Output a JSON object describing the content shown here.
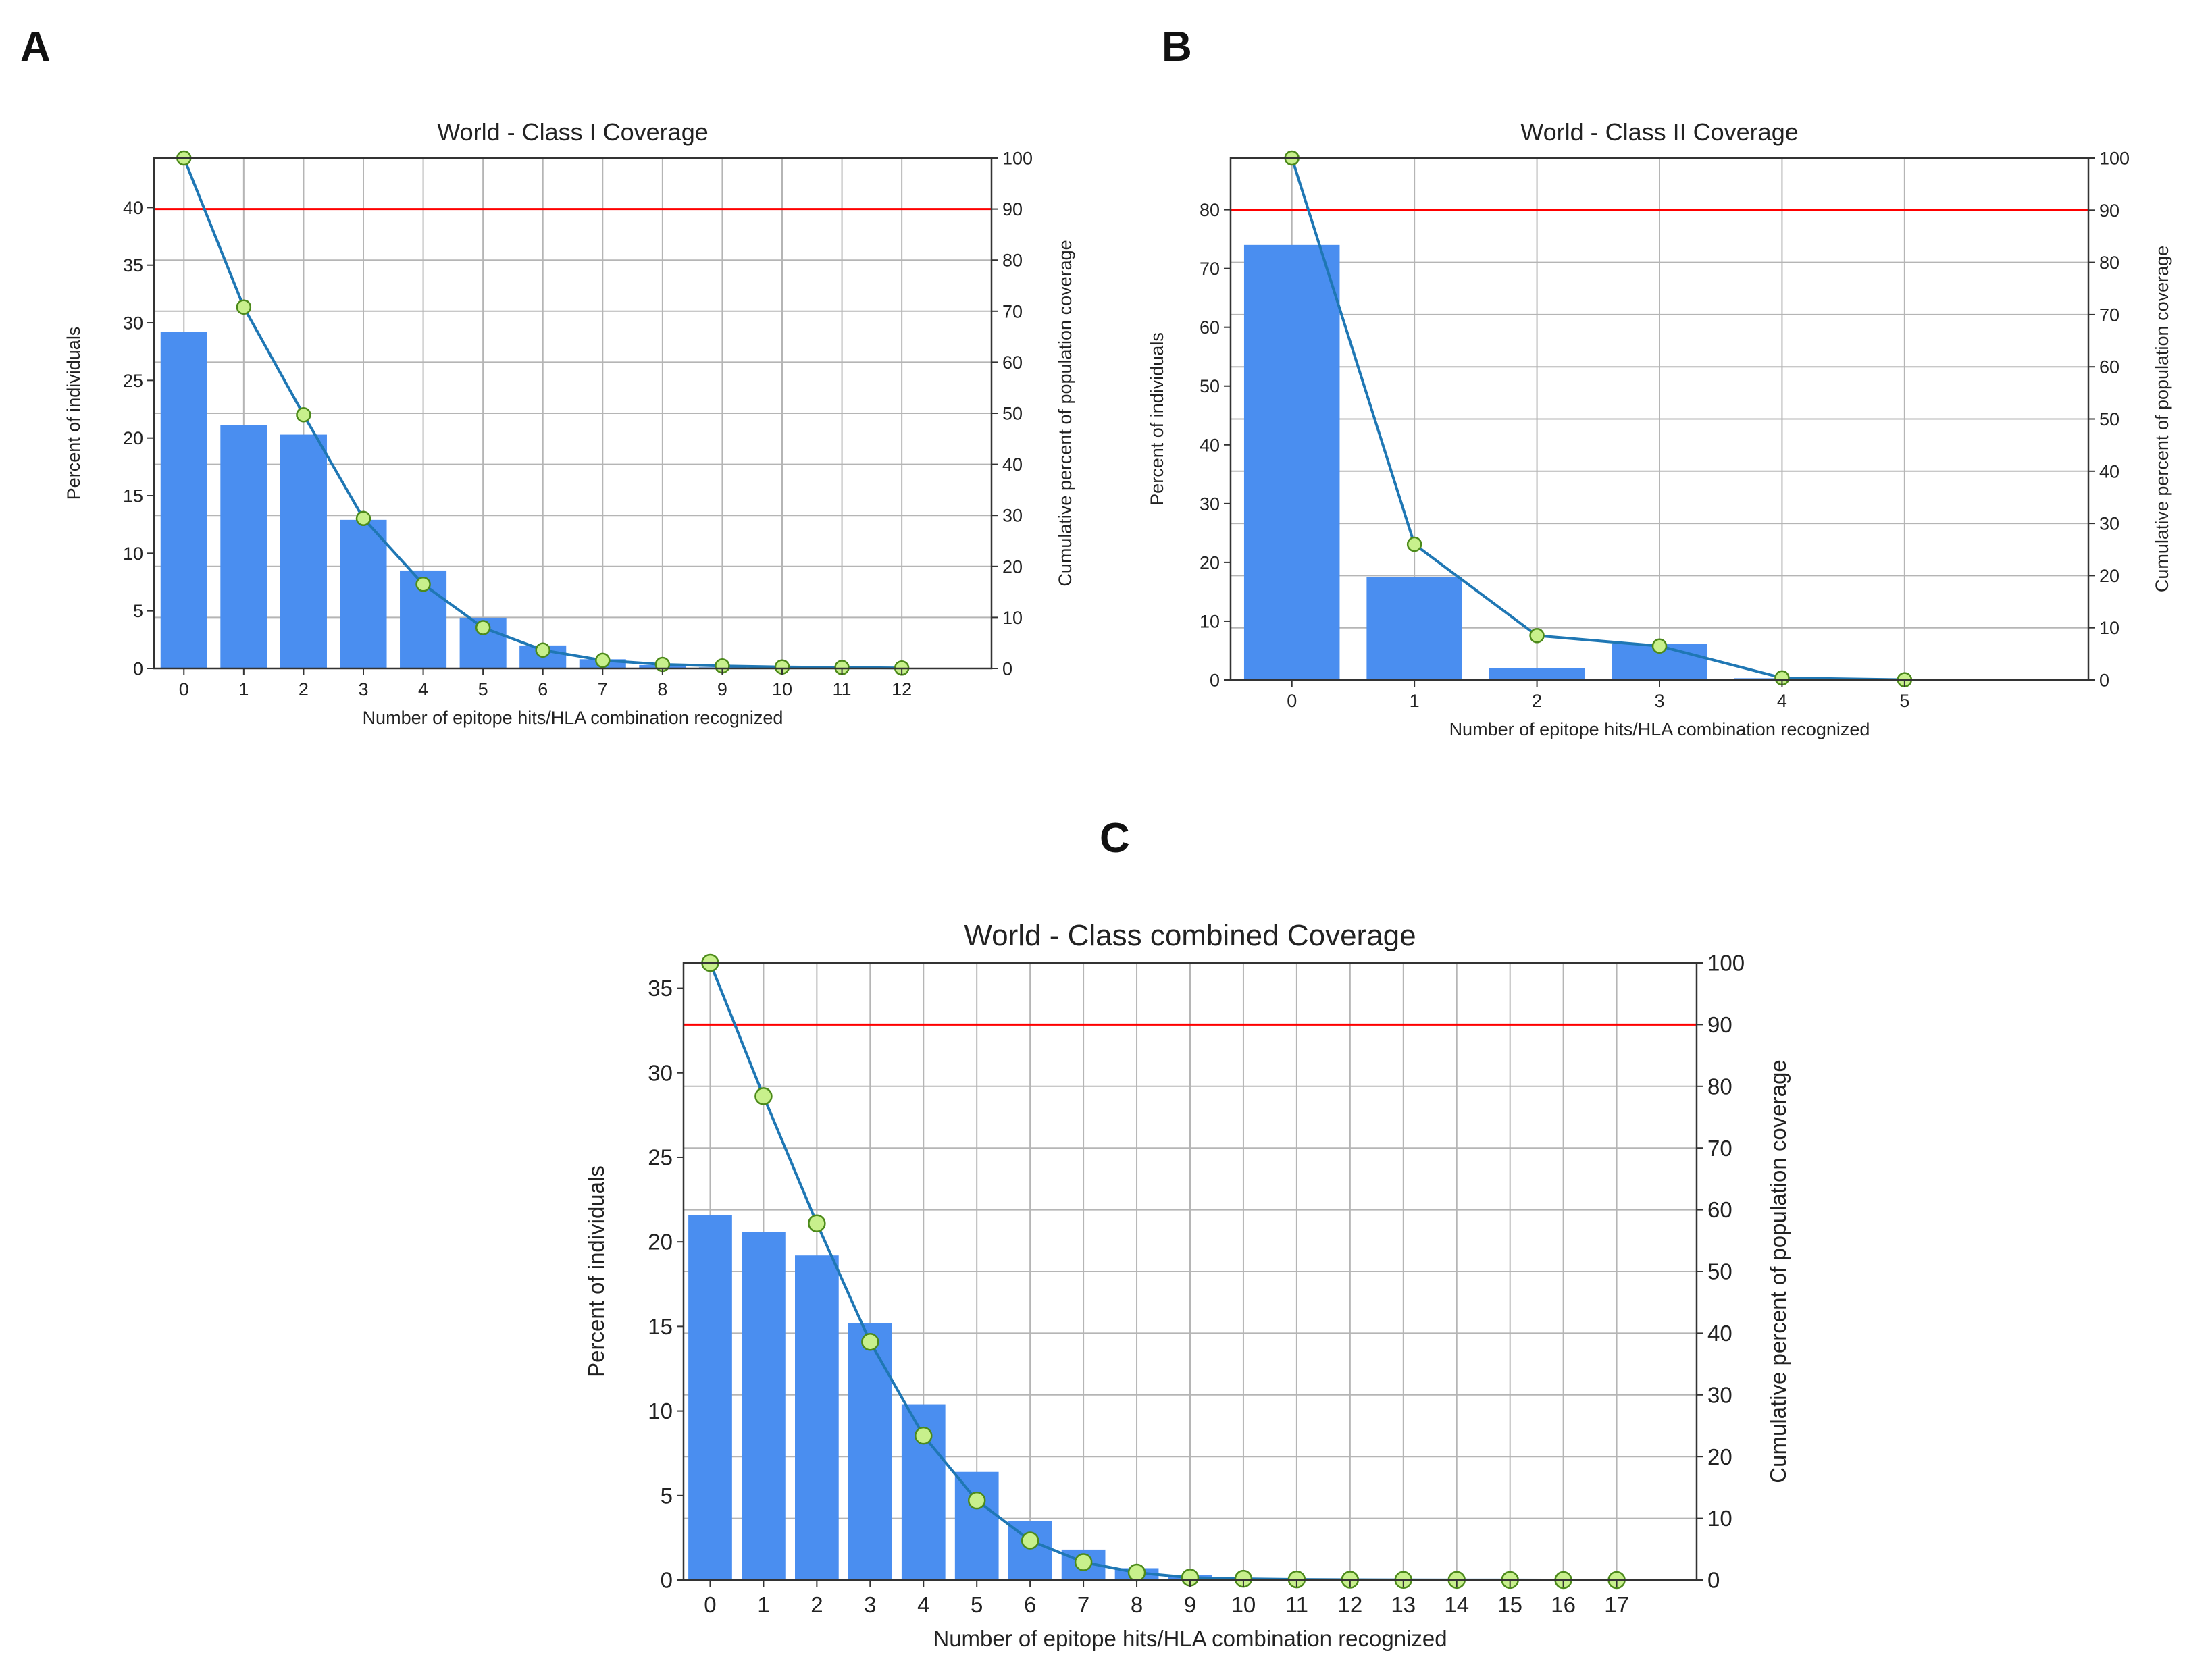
{
  "panels": [
    "A",
    "B",
    "C"
  ],
  "chart_data": [
    {
      "type": "bar",
      "panel_label": "A",
      "title": "World - Class I Coverage",
      "xlabel": "Number of epitope hits/HLA combination recognized",
      "ylabel": "Percent of individuals",
      "y2label": "Cumulative percent of population coverage",
      "categories": [
        "0",
        "1",
        "2",
        "3",
        "4",
        "5",
        "6",
        "7",
        "8",
        "9",
        "10",
        "11",
        "12"
      ],
      "series": [
        {
          "name": "Percent of individuals",
          "type": "bar",
          "color": "#4a8ef0",
          "values": [
            29.2,
            21.1,
            20.3,
            12.9,
            8.5,
            4.4,
            2.0,
            0.8,
            0.3,
            0.1,
            0.05,
            0.02,
            0.01
          ]
        },
        {
          "name": "Cumulative percent of population coverage",
          "type": "line",
          "axis": "right",
          "color": "#1f77b4",
          "marker_color": "#c8f08c",
          "values": [
            100,
            70.8,
            49.7,
            29.4,
            16.5,
            8.0,
            3.6,
            1.6,
            0.8,
            0.5,
            0.3,
            0.2,
            0.1
          ]
        }
      ],
      "ylim": [
        0,
        44.3
      ],
      "y2lim": [
        0,
        100
      ],
      "yticks": [
        0,
        5,
        10,
        15,
        20,
        25,
        30,
        35,
        40
      ],
      "y2ticks": [
        0,
        10,
        20,
        30,
        40,
        50,
        60,
        70,
        80,
        90,
        100
      ],
      "threshold_line": {
        "axis": "right",
        "value": 90,
        "color": "#ff0000"
      },
      "grid": true
    },
    {
      "type": "bar",
      "panel_label": "B",
      "title": "World - Class II Coverage",
      "xlabel": "Number of epitope hits/HLA combination recognized",
      "ylabel": "Percent of individuals",
      "y2label": "Cumulative percent of population coverage",
      "categories": [
        "0",
        "1",
        "2",
        "3",
        "4",
        "5"
      ],
      "series": [
        {
          "name": "Percent of individuals",
          "type": "bar",
          "color": "#4a8ef0",
          "values": [
            74.0,
            17.5,
            2.0,
            6.2,
            0.3,
            0.05
          ]
        },
        {
          "name": "Cumulative percent of population coverage",
          "type": "line",
          "axis": "right",
          "color": "#1f77b4",
          "marker_color": "#c8f08c",
          "values": [
            100,
            26.0,
            8.5,
            6.5,
            0.4,
            0.05
          ]
        }
      ],
      "ylim": [
        0,
        88.8
      ],
      "y2lim": [
        0,
        100
      ],
      "yticks": [
        0,
        10,
        20,
        30,
        40,
        50,
        60,
        70,
        80
      ],
      "y2ticks": [
        0,
        10,
        20,
        30,
        40,
        50,
        60,
        70,
        80,
        90,
        100
      ],
      "threshold_line": {
        "axis": "right",
        "value": 90,
        "color": "#ff0000"
      },
      "grid": true
    },
    {
      "type": "bar",
      "panel_label": "C",
      "title": "World - Class combined Coverage",
      "xlabel": "Number of epitope hits/HLA combination recognized",
      "ylabel": "Percent of individuals",
      "y2label": "Cumulative percent of population coverage",
      "categories": [
        "0",
        "1",
        "2",
        "3",
        "4",
        "5",
        "6",
        "7",
        "8",
        "9",
        "10",
        "11",
        "12",
        "13",
        "14",
        "15",
        "16",
        "17"
      ],
      "series": [
        {
          "name": "Percent of individuals",
          "type": "bar",
          "color": "#4a8ef0",
          "values": [
            21.6,
            20.6,
            19.2,
            15.2,
            10.4,
            6.4,
            3.5,
            1.8,
            0.7,
            0.3,
            0.1,
            0.05,
            0.02,
            0.01,
            0.01,
            0.0,
            0.0,
            0.0
          ]
        },
        {
          "name": "Cumulative percent of population coverage",
          "type": "line",
          "axis": "right",
          "color": "#1f77b4",
          "marker_color": "#c8f08c",
          "values": [
            100,
            78.4,
            57.8,
            38.6,
            23.4,
            12.9,
            6.4,
            2.9,
            1.2,
            0.4,
            0.2,
            0.1,
            0.05,
            0.03,
            0.02,
            0.01,
            0.0,
            0.0
          ]
        }
      ],
      "ylim": [
        0,
        36.5
      ],
      "y2lim": [
        0,
        100
      ],
      "yticks": [
        0,
        5,
        10,
        15,
        20,
        25,
        30,
        35
      ],
      "y2ticks": [
        0,
        10,
        20,
        30,
        40,
        50,
        60,
        70,
        80,
        90,
        100
      ],
      "threshold_line": {
        "axis": "right",
        "value": 90,
        "color": "#ff0000"
      },
      "grid": true
    }
  ]
}
